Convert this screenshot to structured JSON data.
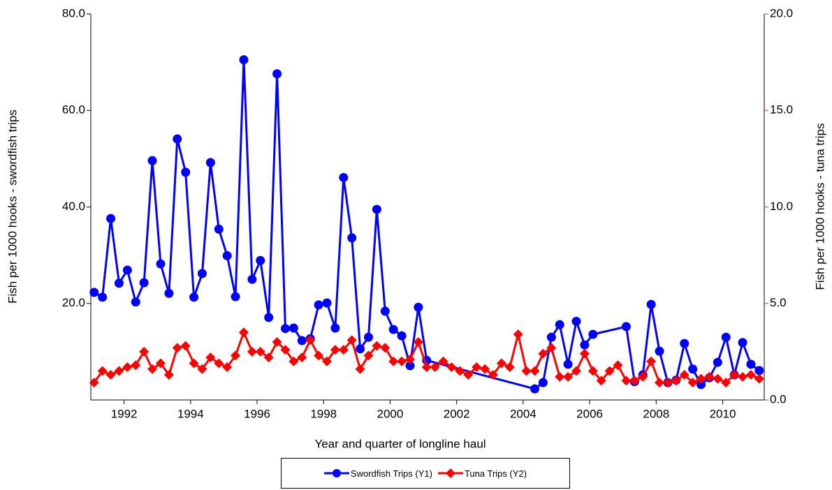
{
  "chart_data": {
    "type": "line",
    "xlabel": "Year and quarter of longline haul",
    "ylabel": "Fish per 1000 hooks - swordfish trips",
    "y2label": "Fish per 1000 hooks - tuna trips",
    "xlim": [
      1991,
      2011.25
    ],
    "xticks": [
      1992,
      1994,
      1996,
      1998,
      2000,
      2002,
      2004,
      2006,
      2008,
      2010
    ],
    "ylim": [
      0,
      80
    ],
    "yticks": [
      {
        "value": 20,
        "label": "20.0"
      },
      {
        "value": 40,
        "label": "40.0"
      },
      {
        "value": 60,
        "label": "60.0"
      },
      {
        "value": 80,
        "label": "80.0"
      }
    ],
    "y2lim": [
      0,
      20
    ],
    "y2ticks": [
      {
        "value": 0,
        "label": "0.0"
      },
      {
        "value": 5,
        "label": "5.0"
      },
      {
        "value": 10,
        "label": "10.0"
      },
      {
        "value": 15,
        "label": "15.0"
      },
      {
        "value": 20,
        "label": "20.0"
      }
    ],
    "series": [
      {
        "name": "Swordfish Trips (Y1)",
        "color": "#0000ff",
        "marker": "circle",
        "x": [
          1991.1,
          1991.35,
          1991.6,
          1991.85,
          1992.1,
          1992.35,
          1992.6,
          1992.85,
          1993.1,
          1993.35,
          1993.6,
          1993.85,
          1994.1,
          1994.35,
          1994.6,
          1994.85,
          1995.1,
          1995.35,
          1995.6,
          1995.85,
          1996.1,
          1996.35,
          1996.6,
          1996.85,
          1997.1,
          1997.35,
          1997.6,
          1997.85,
          1998.1,
          1998.35,
          1998.6,
          1998.85,
          1999.1,
          1999.35,
          1999.6,
          1999.85,
          2000.1,
          2000.35,
          2000.6,
          2000.85,
          2001.1,
          2004.35,
          2004.6,
          2004.85,
          2005.1,
          2005.35,
          2005.6,
          2005.85,
          2006.1,
          2007.1,
          2007.35,
          2007.6,
          2007.85,
          2008.1,
          2008.35,
          2008.6,
          2008.85,
          2009.1,
          2009.35,
          2009.6,
          2009.85,
          2010.1,
          2010.35,
          2010.6,
          2010.85,
          2011.1
        ],
        "values": [
          22.3,
          21.3,
          37.6,
          24.2,
          26.9,
          20.3,
          24.3,
          49.6,
          28.2,
          22.1,
          54.1,
          47.2,
          21.3,
          26.2,
          49.2,
          35.4,
          29.9,
          21.4,
          70.5,
          25.0,
          28.9,
          17.1,
          67.6,
          14.8,
          14.9,
          12.3,
          12.7,
          19.7,
          20.1,
          14.9,
          46.1,
          33.6,
          10.6,
          13.0,
          39.5,
          18.4,
          14.6,
          13.3,
          7.1,
          19.2,
          8.2,
          2.3,
          3.6,
          13.0,
          15.6,
          7.4,
          16.3,
          11.4,
          13.6,
          15.2,
          3.8,
          5.2,
          19.8,
          10.1,
          3.6,
          4.1,
          11.7,
          6.4,
          3.2,
          4.6,
          7.8,
          13.0,
          5.2,
          11.9,
          7.4,
          6.1
        ]
      },
      {
        "name": "Tuna Trips (Y2)",
        "color": "#ff0000",
        "marker": "diamond",
        "axis": "y2",
        "x": [
          1991.1,
          1991.35,
          1991.6,
          1991.85,
          1992.1,
          1992.35,
          1992.6,
          1992.85,
          1993.1,
          1993.35,
          1993.6,
          1993.85,
          1994.1,
          1994.35,
          1994.6,
          1994.85,
          1995.1,
          1995.35,
          1995.6,
          1995.85,
          1996.1,
          1996.35,
          1996.6,
          1996.85,
          1997.1,
          1997.35,
          1997.6,
          1997.85,
          1998.1,
          1998.35,
          1998.6,
          1998.85,
          1999.1,
          1999.35,
          1999.6,
          1999.85,
          2000.1,
          2000.35,
          2000.6,
          2000.85,
          2001.1,
          2001.35,
          2001.6,
          2001.85,
          2002.1,
          2002.35,
          2002.6,
          2002.85,
          2003.1,
          2003.35,
          2003.6,
          2003.85,
          2004.1,
          2004.35,
          2004.6,
          2004.85,
          2005.1,
          2005.35,
          2005.6,
          2005.85,
          2006.1,
          2006.35,
          2006.6,
          2006.85,
          2007.1,
          2007.35,
          2007.6,
          2007.85,
          2008.1,
          2008.35,
          2008.6,
          2008.85,
          2009.1,
          2009.35,
          2009.6,
          2009.85,
          2010.1,
          2010.35,
          2010.6,
          2010.85,
          2011.1
        ],
        "values": [
          0.9,
          1.5,
          1.3,
          1.5,
          1.7,
          1.8,
          2.5,
          1.6,
          1.9,
          1.3,
          2.7,
          2.8,
          1.9,
          1.6,
          2.2,
          1.9,
          1.7,
          2.3,
          3.5,
          2.5,
          2.5,
          2.2,
          3.0,
          2.6,
          2.0,
          2.2,
          3.1,
          2.3,
          2.0,
          2.6,
          2.6,
          3.1,
          1.6,
          2.3,
          2.8,
          2.7,
          2.0,
          2.0,
          2.1,
          3.0,
          1.7,
          1.7,
          2.0,
          1.7,
          1.5,
          1.3,
          1.7,
          1.6,
          1.3,
          1.9,
          1.7,
          3.4,
          1.5,
          1.5,
          2.4,
          2.7,
          1.2,
          1.2,
          1.5,
          2.4,
          1.5,
          1.0,
          1.5,
          1.8,
          1.0,
          1.0,
          1.2,
          2.0,
          0.9,
          0.9,
          1.0,
          1.3,
          0.9,
          1.1,
          1.2,
          1.1,
          0.9,
          1.3,
          1.2,
          1.3,
          1.1
        ]
      }
    ]
  }
}
